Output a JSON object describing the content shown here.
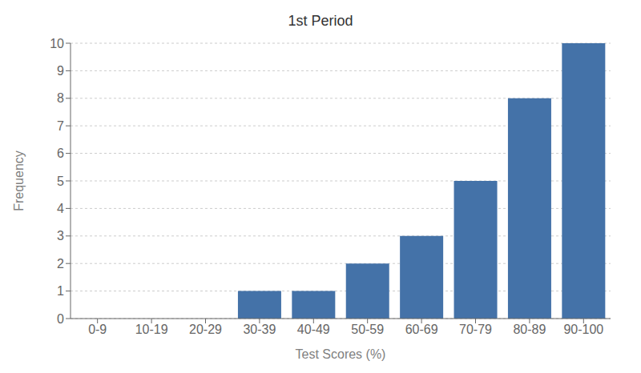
{
  "chart_data": {
    "type": "bar",
    "title": "1st Period",
    "xlabel": "Test Scores (%)",
    "ylabel": "Frequency",
    "categories": [
      "0-9",
      "10-19",
      "20-29",
      "30-39",
      "40-49",
      "50-59",
      "60-69",
      "70-79",
      "80-89",
      "90-100"
    ],
    "values": [
      0,
      0,
      0,
      1,
      1,
      2,
      3,
      5,
      8,
      10
    ],
    "color": "#4472a8",
    "ylim": [
      0,
      10
    ],
    "yticks": [
      0,
      1,
      2,
      3,
      4,
      5,
      6,
      7,
      8,
      9,
      10
    ],
    "grid": true
  }
}
